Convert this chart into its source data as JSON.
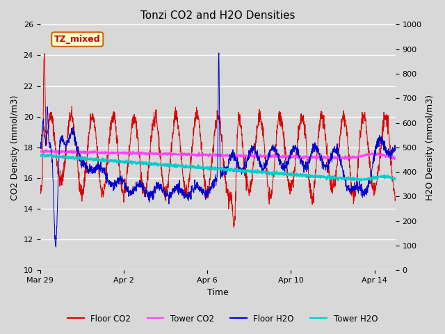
{
  "title": "Tonzi CO2 and H2O Densities",
  "xlabel": "Time",
  "ylabel_left": "CO2 Density (mmol/m3)",
  "ylabel_right": "H2O Density (mmol/m3)",
  "annotation_text": "TZ_mixed",
  "annotation_bg": "#ffffcc",
  "annotation_border": "#cc6600",
  "annotation_text_color": "#cc0000",
  "ylim_left": [
    10,
    26
  ],
  "ylim_right": [
    0,
    1000
  ],
  "yticks_left": [
    10,
    12,
    14,
    16,
    18,
    20,
    22,
    24,
    26
  ],
  "yticks_right": [
    0,
    100,
    200,
    300,
    400,
    500,
    600,
    700,
    800,
    900,
    1000
  ],
  "bg_color": "#d8d8d8",
  "plot_bg": "#d8d8d8",
  "grid_color": "#ffffff",
  "colors": {
    "floor_co2": "#dd0000",
    "tower_co2": "#ff44ff",
    "floor_h2o": "#0000cc",
    "tower_h2o": "#00cccc"
  },
  "legend_labels": [
    "Floor CO2",
    "Tower CO2",
    "Floor H2O",
    "Tower H2O"
  ],
  "n_points": 2000,
  "xtick_labels": [
    "Mar 29",
    "Apr 2",
    "Apr 6",
    "Apr 10",
    "Apr 14"
  ],
  "xtick_positions": [
    0,
    4,
    8,
    12,
    16
  ]
}
